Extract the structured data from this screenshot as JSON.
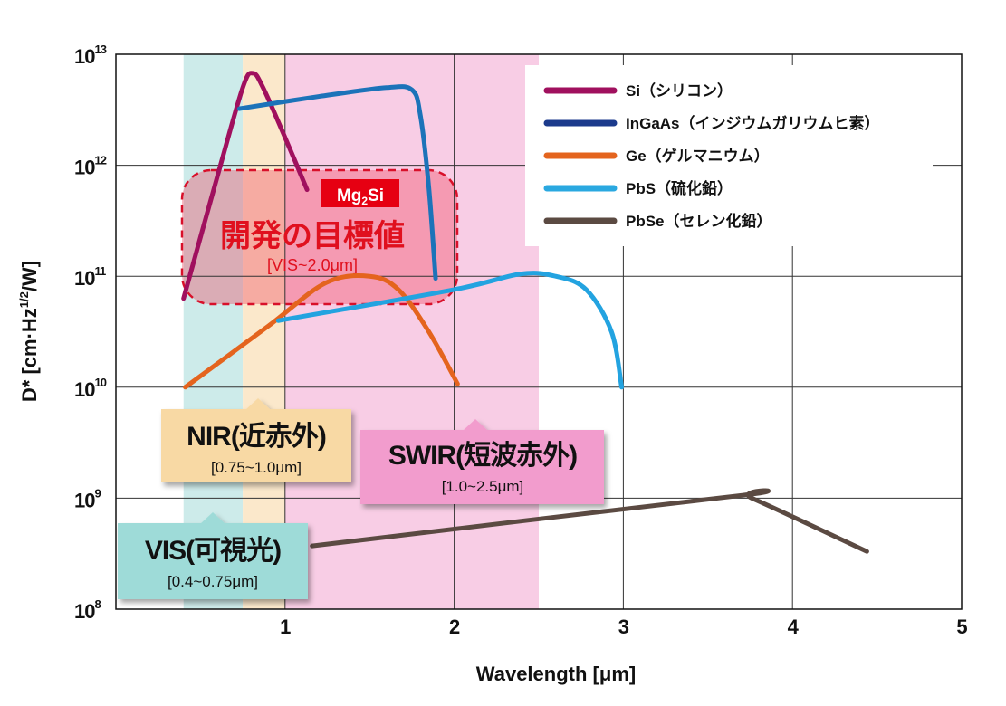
{
  "chart_data": {
    "type": "line",
    "title": "",
    "xlabel": "Wavelength [μm]",
    "ylabel_parts": [
      "D* [cm·Hz",
      "1/2",
      "/W]"
    ],
    "xlim": [
      0,
      5
    ],
    "ylim_log10": [
      8,
      13
    ],
    "yscale": "log",
    "grid": true,
    "x_ticks": [
      "1",
      "2",
      "3",
      "4",
      "5"
    ],
    "x_tick_values": [
      1,
      2,
      3,
      4,
      5
    ],
    "y_ticks": [
      {
        "base": "10",
        "exp": "13",
        "value": 13
      },
      {
        "base": "10",
        "exp": "12",
        "value": 12
      },
      {
        "base": "10",
        "exp": "11",
        "value": 11
      },
      {
        "base": "10",
        "exp": "10",
        "value": 10
      },
      {
        "base": "10",
        "exp": "9",
        "value": 9
      },
      {
        "base": "10",
        "exp": "8",
        "value": 8
      }
    ],
    "legend_position": "top-right",
    "series": [
      {
        "name": "Si（シリコン）",
        "color": "#a0105e",
        "legend_color": "#a0105e",
        "points_log10": [
          [
            0.4,
            10.8
          ],
          [
            0.6,
            11.9
          ],
          [
            0.75,
            12.7
          ],
          [
            0.81,
            12.83
          ],
          [
            0.87,
            12.7
          ],
          [
            1.0,
            12.25
          ],
          [
            1.13,
            11.78
          ]
        ]
      },
      {
        "name": "InGaAs（インジウムガリウムヒ素）",
        "color": "#1c73b9",
        "legend_color": "#1b3a8c",
        "points_log10": [
          [
            0.73,
            12.51
          ],
          [
            1.2,
            12.62
          ],
          [
            1.6,
            12.7
          ],
          [
            1.75,
            12.68
          ],
          [
            1.8,
            12.45
          ],
          [
            1.85,
            11.8
          ],
          [
            1.89,
            10.98
          ]
        ]
      },
      {
        "name": "Ge（ゲルマニウム）",
        "color": "#e4641e",
        "legend_color": "#e4641e",
        "points_log10": [
          [
            0.41,
            10.0
          ],
          [
            0.9,
            10.55
          ],
          [
            1.24,
            10.94
          ],
          [
            1.5,
            11.0
          ],
          [
            1.67,
            10.88
          ],
          [
            1.85,
            10.5
          ],
          [
            2.02,
            10.03
          ]
        ]
      },
      {
        "name": "PbS（硫化鉛）",
        "color": "#23a3e0",
        "legend_color": "#2aa8e0",
        "points_log10": [
          [
            0.96,
            10.6
          ],
          [
            2.0,
            10.88
          ],
          [
            2.39,
            11.02
          ],
          [
            2.6,
            11.0
          ],
          [
            2.78,
            10.88
          ],
          [
            2.93,
            10.5
          ],
          [
            2.99,
            10.0
          ]
        ]
      },
      {
        "name": "PbSe（セレン化鉛）",
        "color": "#5b4a42",
        "legend_color": "#5b4a42",
        "points_log10": [
          [
            1.16,
            8.57
          ],
          [
            3.67,
            9.02
          ],
          [
            3.76,
            9.0
          ],
          [
            4.44,
            8.52
          ]
        ]
      }
    ],
    "bands": [
      {
        "name": "VIS",
        "range": [
          0.4,
          0.75
        ],
        "color": "#cdebea"
      },
      {
        "name": "NIR",
        "range": [
          0.75,
          1.0
        ],
        "color": "#fbe8cb"
      },
      {
        "name": "SWIR",
        "range": [
          1.0,
          2.5
        ],
        "color": "#f8cde5"
      }
    ],
    "annotations": {
      "target": {
        "tag": "Mg",
        "tag_sub": "2",
        "tag_end": "Si",
        "title": "開発の目標値",
        "range": "[VIS~2.0μm]",
        "tag_color": "#e60012",
        "text_color": "#e0101e"
      },
      "nir": {
        "title": "NIR(近赤外)",
        "range": "[0.75~1.0μm]",
        "color": "#f8d9a4"
      },
      "swir": {
        "title": "SWIR(短波赤外)",
        "range": "[1.0~2.5μm]",
        "color": "#f29ccd"
      },
      "vis": {
        "title": "VIS(可視光)",
        "range": "[0.4~0.75μm]",
        "color": "#9edbd8"
      }
    }
  }
}
